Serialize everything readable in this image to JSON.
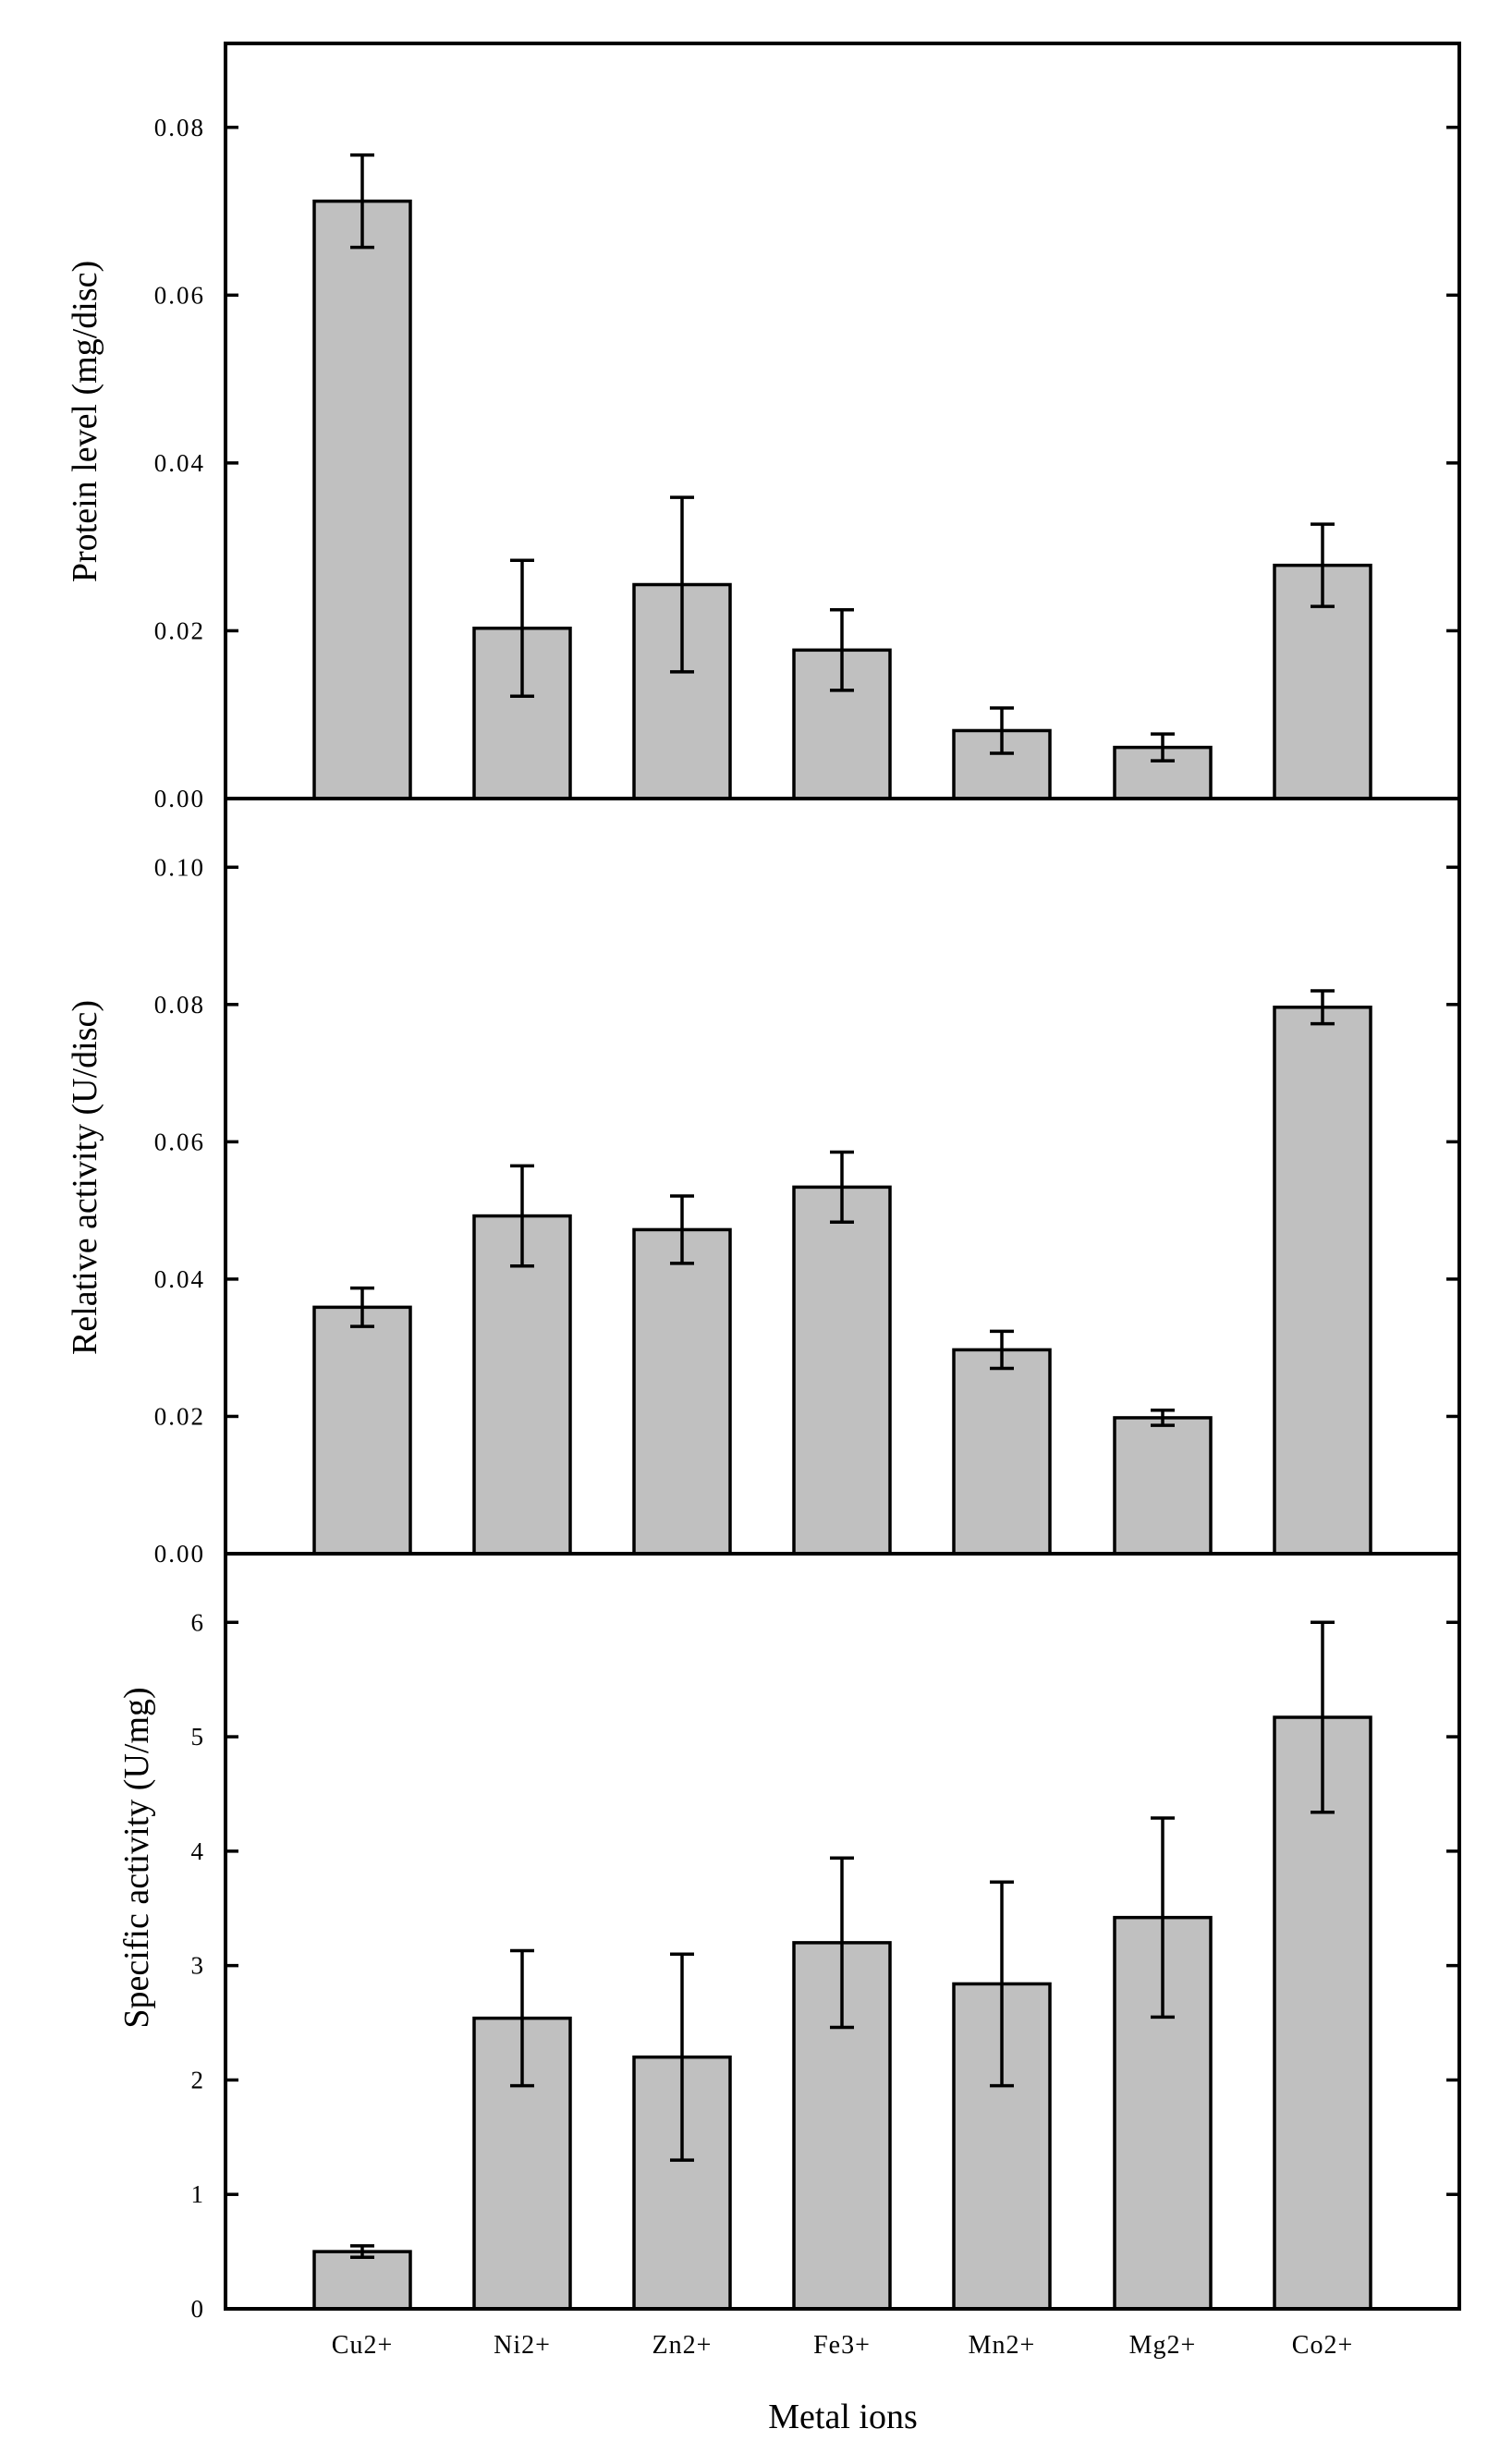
{
  "chart_data": [
    {
      "type": "bar",
      "panel": "top",
      "ylabel": "Protein level (mg/disc)",
      "categories": [
        "Cu2+",
        "Ni2+",
        "Zn2+",
        "Fe3+",
        "Mn2+",
        "Mg2+",
        "Co2+"
      ],
      "values": [
        0.0712,
        0.0203,
        0.0255,
        0.0177,
        0.0081,
        0.0061,
        0.0278
      ],
      "errors": [
        0.0055,
        0.0081,
        0.0104,
        0.0048,
        0.0027,
        0.0016,
        0.0049
      ],
      "ylim": [
        0,
        0.09
      ],
      "yticks": [
        0.0,
        0.02,
        0.04,
        0.06,
        0.08
      ],
      "ytick_labels": [
        "0.00",
        "0.02",
        "0.04",
        "0.06",
        "0.08"
      ],
      "bar_color": "#c0c0c0"
    },
    {
      "type": "bar",
      "panel": "middle",
      "ylabel": "Relative activity (U/disc)",
      "categories": [
        "Cu2+",
        "Ni2+",
        "Zn2+",
        "Fe3+",
        "Mn2+",
        "Mg2+",
        "Co2+"
      ],
      "values": [
        0.0359,
        0.0492,
        0.0472,
        0.0534,
        0.0297,
        0.0198,
        0.0796
      ],
      "errors": [
        0.0028,
        0.0073,
        0.0049,
        0.0051,
        0.0027,
        0.0011,
        0.0024
      ],
      "ylim": [
        0,
        0.11
      ],
      "yticks": [
        0.0,
        0.02,
        0.04,
        0.06,
        0.08,
        0.1
      ],
      "ytick_labels": [
        "0.00",
        "0.02",
        "0.04",
        "0.06",
        "0.08",
        "0.10"
      ],
      "bar_color": "#c0c0c0"
    },
    {
      "type": "bar",
      "panel": "bottom",
      "ylabel": "Specific activity (U/mg)",
      "xlabel": "Metal ions",
      "categories": [
        "Cu2+",
        "Ni2+",
        "Zn2+",
        "Fe3+",
        "Mn2+",
        "Mg2+",
        "Co2+"
      ],
      "values": [
        0.5,
        2.54,
        2.2,
        3.2,
        2.84,
        3.42,
        5.17
      ],
      "errors": [
        0.05,
        0.59,
        0.9,
        0.74,
        0.89,
        0.87,
        0.83
      ],
      "ylim": [
        0,
        6.6
      ],
      "yticks": [
        0,
        1,
        2,
        3,
        4,
        5,
        6
      ],
      "ytick_labels": [
        "0",
        "1",
        "2",
        "3",
        "4",
        "5",
        "6"
      ],
      "bar_color": "#c0c0c0"
    }
  ]
}
